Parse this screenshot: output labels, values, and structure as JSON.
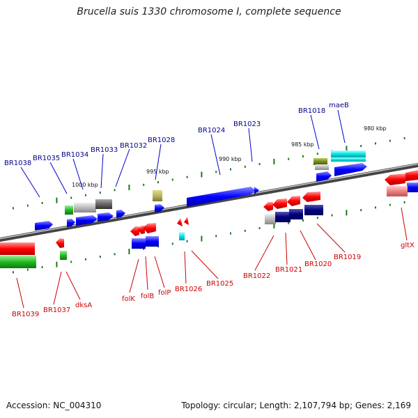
{
  "title": "Brucella suis 1330 chromosome I, complete sequence",
  "footer": {
    "accession": "Accession: NC_004310",
    "topology": "Topology: circular; Length: 2,107,794 bp; Genes: 2,169"
  },
  "ticks": [
    "1000 kbp",
    "995 kbp",
    "990 kbp",
    "985 kbp",
    "980 kbp"
  ],
  "genes_top": [
    "BR1038",
    "BR1035",
    "BR1034",
    "BR1033",
    "BR1032",
    "BR1028",
    "BR1024",
    "BR1023",
    "BR1018",
    "maeB"
  ],
  "genes_bottom": [
    "BR1039",
    "BR1037",
    "dksA",
    "folK",
    "folB",
    "folP",
    "BR1026",
    "BR1025",
    "BR1022",
    "BR1021",
    "BR1020",
    "BR1019",
    "gltX"
  ],
  "colors": {
    "forward_label": "#00008b",
    "reverse_label": "#cc0000",
    "forward_gene": "#0000ff",
    "reverse_gene": "#ff0000"
  }
}
